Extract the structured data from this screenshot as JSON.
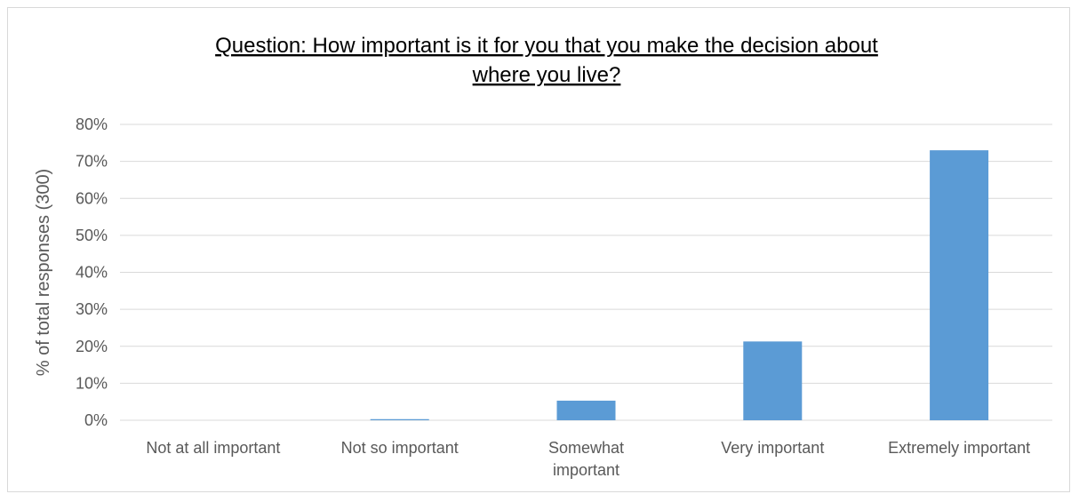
{
  "chart_data": {
    "type": "bar",
    "title_lines": [
      "Question: How important is it for you that you make the decision about",
      "where you live?"
    ],
    "xlabel": "",
    "ylabel": "% of total responses (300)",
    "categories": [
      [
        "Not at all important"
      ],
      [
        "Not so important"
      ],
      [
        "Somewhat",
        "important"
      ],
      [
        "Very important"
      ],
      [
        "Extremely important"
      ]
    ],
    "values": [
      0.0,
      0.3,
      5.3,
      21.3,
      73.0
    ],
    "ylim": [
      0,
      80
    ],
    "yticks": [
      0,
      10,
      20,
      30,
      40,
      50,
      60,
      70,
      80
    ],
    "ytick_labels": [
      "0%",
      "10%",
      "20%",
      "30%",
      "40%",
      "50%",
      "60%",
      "70%",
      "80%"
    ],
    "grid": true,
    "bar_color": "#5b9bd5",
    "grid_color": "#d9d9d9"
  }
}
